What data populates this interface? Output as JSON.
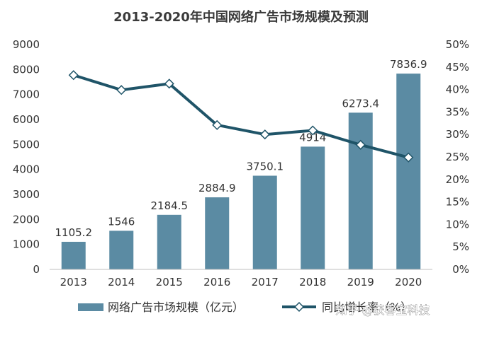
{
  "chart_data": {
    "type": "bar",
    "title": "2013-2020年中国网络广告市场规模及预测",
    "categories": [
      "2013",
      "2014",
      "2015",
      "2016",
      "2017",
      "2018",
      "2019",
      "2020"
    ],
    "series": [
      {
        "name": "网络广告市场规模（亿元）",
        "type": "bar",
        "axis": "left",
        "values": [
          1105.2,
          1546,
          2184.5,
          2884.9,
          3750.1,
          4914,
          6273.4,
          7836.9
        ],
        "labels": [
          "1105.2",
          "1546",
          "2184.5",
          "2884.9",
          "3750.1",
          "4914",
          "6273.4",
          "7836.9"
        ],
        "color": "#5b8ba3"
      },
      {
        "name": "同比增长率（%）",
        "type": "line",
        "axis": "right",
        "values": [
          43.2,
          39.9,
          41.3,
          32.1,
          30.0,
          30.9,
          27.7,
          24.9
        ],
        "color": "#1f5468",
        "marker": "diamond"
      }
    ],
    "y_left": {
      "ylim": [
        0,
        9000
      ],
      "ticks": [
        "0",
        "1000",
        "2000",
        "3000",
        "4000",
        "5000",
        "6000",
        "7000",
        "8000",
        "9000"
      ]
    },
    "y_right": {
      "ylim": [
        0,
        50
      ],
      "ticks": [
        "0%",
        "5%",
        "10%",
        "15%",
        "20%",
        "25%",
        "30%",
        "35%",
        "40%",
        "45%",
        "50%"
      ]
    },
    "grid": false,
    "legend": "bottom"
  },
  "watermark": "知乎 @获客宝科技"
}
